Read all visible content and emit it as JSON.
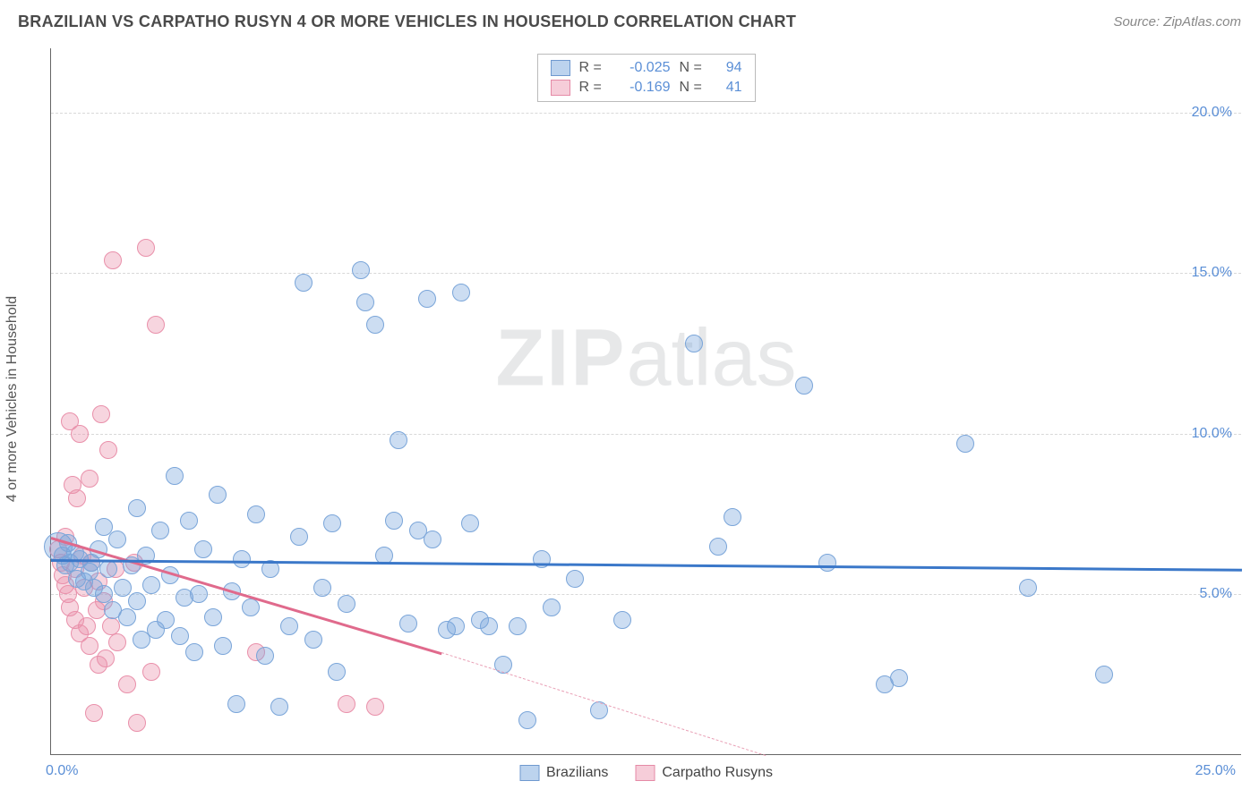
{
  "title": "BRAZILIAN VS CARPATHO RUSYN 4 OR MORE VEHICLES IN HOUSEHOLD CORRELATION CHART",
  "source": "Source: ZipAtlas.com",
  "ylabel": "4 or more Vehicles in Household",
  "watermark_zip": "ZIP",
  "watermark_atlas": "atlas",
  "chart": {
    "type": "scatter",
    "xlim": [
      0,
      25
    ],
    "ylim": [
      0,
      22
    ],
    "xtick": {
      "pos": 0,
      "label": "0.0%"
    },
    "xtick_right": {
      "pos": 25,
      "label": "25.0%"
    },
    "yticks": [
      {
        "pos": 5,
        "label": "5.0%"
      },
      {
        "pos": 10,
        "label": "10.0%"
      },
      {
        "pos": 15,
        "label": "15.0%"
      },
      {
        "pos": 20,
        "label": "20.0%"
      }
    ],
    "grid_color": "#d8d8d8",
    "background_color": "#ffffff",
    "series": [
      {
        "name": "Brazilians",
        "fill": "rgba(120,165,220,0.38)",
        "stroke": "#7aa5d9",
        "swatch_fill": "#bcd3ee",
        "swatch_border": "#6f99cf",
        "marker_r": 10,
        "R": "-0.025",
        "N": "94",
        "trend": {
          "x1": 0,
          "y1": 6.1,
          "x2": 25,
          "y2": 5.8,
          "color": "#3b78c9"
        },
        "points": [
          [
            0.15,
            6.5,
            16
          ],
          [
            0.25,
            6.2
          ],
          [
            0.3,
            5.9
          ],
          [
            0.35,
            6.6
          ],
          [
            0.4,
            6.0
          ],
          [
            0.5,
            6.3
          ],
          [
            0.55,
            5.5
          ],
          [
            0.6,
            6.1
          ],
          [
            0.7,
            5.4
          ],
          [
            0.8,
            5.7
          ],
          [
            0.85,
            6.0
          ],
          [
            0.9,
            5.2
          ],
          [
            1.0,
            6.4
          ],
          [
            1.1,
            5.0
          ],
          [
            1.1,
            7.1
          ],
          [
            1.2,
            5.8
          ],
          [
            1.3,
            4.5
          ],
          [
            1.4,
            6.7
          ],
          [
            1.5,
            5.2
          ],
          [
            1.6,
            4.3
          ],
          [
            1.7,
            5.9
          ],
          [
            1.8,
            4.8
          ],
          [
            1.8,
            7.7
          ],
          [
            1.9,
            3.6
          ],
          [
            2.0,
            6.2
          ],
          [
            2.1,
            5.3
          ],
          [
            2.2,
            3.9
          ],
          [
            2.3,
            7.0
          ],
          [
            2.4,
            4.2
          ],
          [
            2.5,
            5.6
          ],
          [
            2.6,
            8.7
          ],
          [
            2.7,
            3.7
          ],
          [
            2.8,
            4.9
          ],
          [
            2.9,
            7.3
          ],
          [
            3.0,
            3.2
          ],
          [
            3.1,
            5.0
          ],
          [
            3.2,
            6.4
          ],
          [
            3.4,
            4.3
          ],
          [
            3.5,
            8.1
          ],
          [
            3.6,
            3.4
          ],
          [
            3.8,
            5.1
          ],
          [
            3.9,
            1.6
          ],
          [
            4.0,
            6.1
          ],
          [
            4.2,
            4.6
          ],
          [
            4.3,
            7.5
          ],
          [
            4.5,
            3.1
          ],
          [
            4.6,
            5.8
          ],
          [
            4.8,
            1.5
          ],
          [
            5.0,
            4.0
          ],
          [
            5.2,
            6.8
          ],
          [
            5.3,
            14.7
          ],
          [
            5.5,
            3.6
          ],
          [
            5.7,
            5.2
          ],
          [
            5.9,
            7.2
          ],
          [
            6.0,
            2.6
          ],
          [
            6.2,
            4.7
          ],
          [
            6.5,
            15.1
          ],
          [
            6.6,
            14.1
          ],
          [
            6.8,
            13.4
          ],
          [
            7.0,
            6.2
          ],
          [
            7.2,
            7.3
          ],
          [
            7.3,
            9.8
          ],
          [
            7.5,
            4.1
          ],
          [
            7.7,
            7.0
          ],
          [
            7.9,
            14.2
          ],
          [
            8.0,
            6.7
          ],
          [
            8.3,
            3.9
          ],
          [
            8.5,
            4.0
          ],
          [
            8.6,
            14.4
          ],
          [
            8.8,
            7.2
          ],
          [
            9.0,
            4.2
          ],
          [
            9.2,
            4.0
          ],
          [
            9.5,
            2.8
          ],
          [
            9.8,
            4.0
          ],
          [
            10.0,
            1.1
          ],
          [
            10.3,
            6.1
          ],
          [
            10.5,
            4.6
          ],
          [
            11.0,
            5.5
          ],
          [
            11.5,
            1.4
          ],
          [
            12.0,
            4.2
          ],
          [
            13.5,
            12.8
          ],
          [
            14.0,
            6.5
          ],
          [
            14.3,
            7.4
          ],
          [
            15.8,
            11.5
          ],
          [
            16.3,
            6.0
          ],
          [
            17.5,
            2.2
          ],
          [
            17.8,
            2.4
          ],
          [
            19.2,
            9.7
          ],
          [
            20.5,
            5.2
          ],
          [
            22.1,
            2.5
          ]
        ]
      },
      {
        "name": "Carpatho Rusyns",
        "fill": "rgba(235,145,170,0.38)",
        "stroke": "#e990aa",
        "swatch_fill": "#f6cdd9",
        "swatch_border": "#e58aa6",
        "marker_r": 10,
        "R": "-0.169",
        "N": "41",
        "trend": {
          "x1": 0,
          "y1": 6.8,
          "x2": 8.2,
          "y2": 3.2,
          "color": "#e06a8c"
        },
        "trend_dash": {
          "x1": 8.2,
          "y1": 3.2,
          "x2": 15.0,
          "y2": 0.0,
          "color": "#e9a0b6"
        },
        "points": [
          [
            0.15,
            6.4
          ],
          [
            0.2,
            6.0
          ],
          [
            0.25,
            5.6
          ],
          [
            0.3,
            5.3
          ],
          [
            0.3,
            6.8
          ],
          [
            0.35,
            5.0
          ],
          [
            0.4,
            10.4
          ],
          [
            0.4,
            4.6
          ],
          [
            0.45,
            8.4
          ],
          [
            0.5,
            5.8
          ],
          [
            0.5,
            4.2
          ],
          [
            0.55,
            8.0
          ],
          [
            0.6,
            10.0
          ],
          [
            0.6,
            3.8
          ],
          [
            0.65,
            6.2
          ],
          [
            0.7,
            5.2
          ],
          [
            0.75,
            4.0
          ],
          [
            0.8,
            8.6
          ],
          [
            0.8,
            3.4
          ],
          [
            0.85,
            6.0
          ],
          [
            0.9,
            1.3
          ],
          [
            0.95,
            4.5
          ],
          [
            1.0,
            5.4
          ],
          [
            1.0,
            2.8
          ],
          [
            1.05,
            10.6
          ],
          [
            1.1,
            4.8
          ],
          [
            1.15,
            3.0
          ],
          [
            1.2,
            9.5
          ],
          [
            1.25,
            4.0
          ],
          [
            1.3,
            15.4
          ],
          [
            1.35,
            5.8
          ],
          [
            1.4,
            3.5
          ],
          [
            1.6,
            2.2
          ],
          [
            1.75,
            6.0
          ],
          [
            1.8,
            1.0
          ],
          [
            2.0,
            15.8
          ],
          [
            2.1,
            2.6
          ],
          [
            2.2,
            13.4
          ],
          [
            4.3,
            3.2
          ],
          [
            6.2,
            1.6
          ],
          [
            6.8,
            1.5
          ]
        ]
      }
    ]
  },
  "legend": {
    "s1": "Brazilians",
    "s2": "Carpatho Rusyns"
  }
}
